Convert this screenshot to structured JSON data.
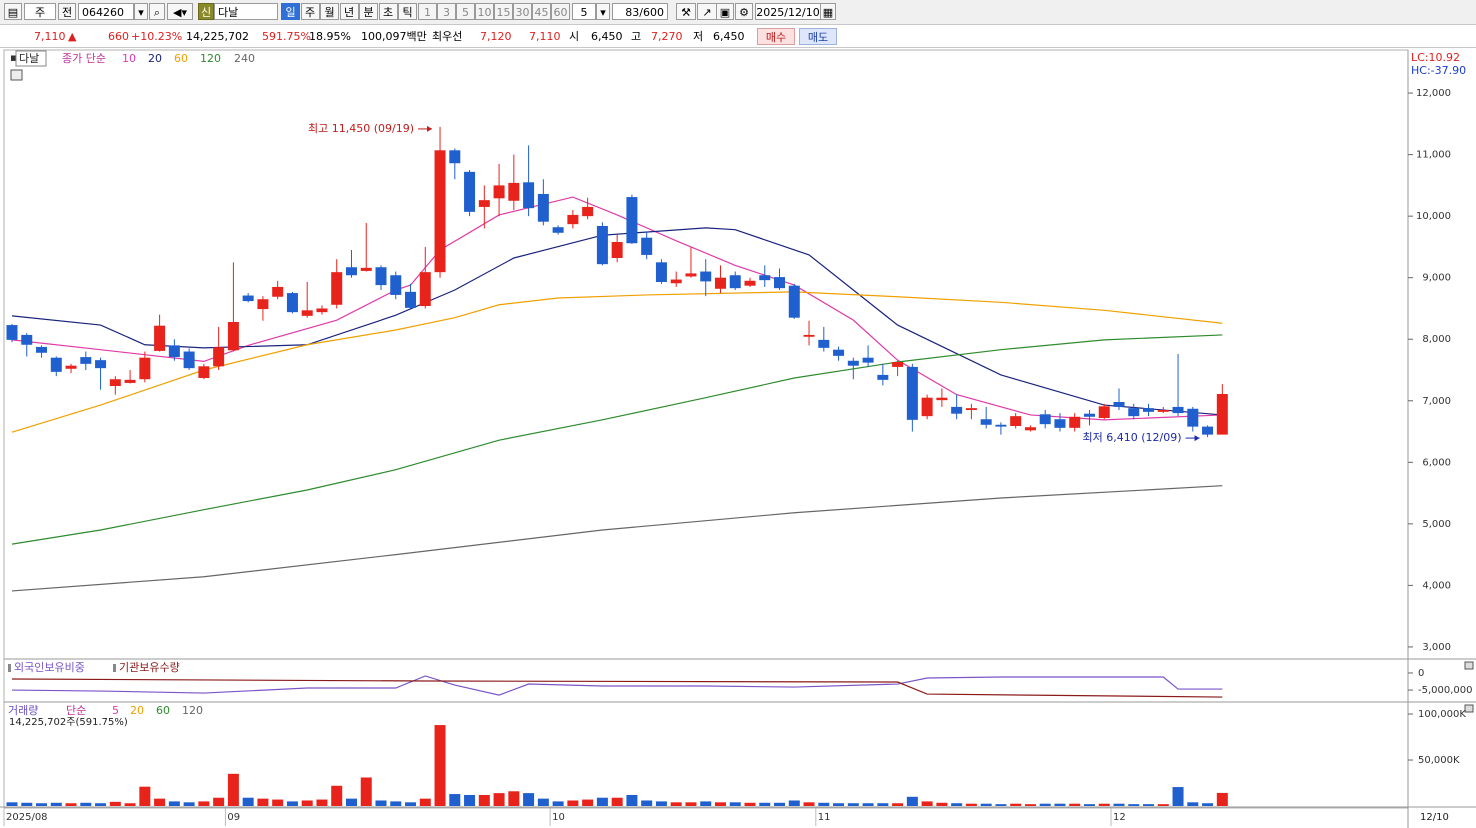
{
  "toolbar": {
    "market": "주",
    "prev": "전",
    "code": "064260",
    "new": "신",
    "name": "다날",
    "periods": [
      "일",
      "주",
      "월",
      "년",
      "분",
      "초",
      "틱"
    ],
    "minutes": [
      "1",
      "3",
      "5",
      "10",
      "15",
      "30",
      "45",
      "60"
    ],
    "count_select": "5",
    "count": "83/600",
    "date": "2025/12/10"
  },
  "quote_bar": {
    "price": "7,110",
    "arrow": "▲",
    "change": "660",
    "change_rate": "+10.23%",
    "volume": "14,225,702",
    "volume_rate": "591.75%",
    "turnover": "18.95%",
    "amount": "100,097백만",
    "best_label": "최우선",
    "ask": "7,120",
    "bid": "7,110",
    "open_label": "시",
    "open": "6,450",
    "high_label": "고",
    "high": "7,270",
    "low_label": "저",
    "low": "6,450",
    "buy": "매수",
    "sell": "매도"
  },
  "chart_data": [
    {
      "type": "candlestick",
      "name": "다날",
      "title": "종가 단순",
      "lc": "LC:10.92",
      "hc": "HC:-37.90",
      "end_date": "12/10",
      "categories": [
        "2025/08",
        null,
        null,
        null,
        null,
        null,
        null,
        null,
        null,
        null,
        null,
        null,
        null,
        null,
        null,
        "09",
        null,
        null,
        null,
        null,
        null,
        null,
        null,
        null,
        null,
        null,
        null,
        null,
        null,
        null,
        null,
        null,
        null,
        null,
        null,
        null,
        null,
        "10",
        null,
        null,
        null,
        null,
        null,
        null,
        null,
        null,
        null,
        null,
        null,
        null,
        null,
        null,
        null,
        null,
        null,
        "11",
        null,
        null,
        null,
        null,
        null,
        null,
        null,
        null,
        null,
        null,
        null,
        null,
        null,
        null,
        null,
        null,
        null,
        null,
        null,
        "12",
        null,
        null,
        null,
        null,
        null,
        null,
        null
      ],
      "open": [
        8230,
        8070,
        7875,
        7700,
        7520,
        7710,
        7660,
        7240,
        7290,
        7350,
        7810,
        7900,
        7800,
        7370,
        7560,
        7820,
        8710,
        8490,
        8690,
        8750,
        8380,
        8440,
        8560,
        9170,
        9110,
        9170,
        9040,
        8770,
        8540,
        9090,
        11070,
        10720,
        10150,
        10290,
        10250,
        10550,
        10360,
        9820,
        9870,
        10000,
        9840,
        9320,
        10310,
        9650,
        9250,
        8910,
        9020,
        9100,
        8820,
        9040,
        8870,
        9040,
        9010,
        8870,
        8040,
        7990,
        7830,
        7650,
        7700,
        7420,
        7550,
        7550,
        6750,
        7010,
        6900,
        6850,
        6700,
        6610,
        6590,
        6520,
        6780,
        6700,
        6560,
        6790,
        6720,
        6980,
        6880,
        6880,
        6820,
        6900,
        6870,
        6580,
        6450
      ],
      "high": [
        8250,
        8100,
        7900,
        7720,
        7600,
        7800,
        7700,
        7400,
        7500,
        7800,
        8400,
        8000,
        7850,
        7600,
        8200,
        9250,
        8750,
        8700,
        8950,
        8770,
        8930,
        8550,
        9300,
        9450,
        9890,
        9200,
        9100,
        8900,
        9500,
        11450,
        11100,
        10750,
        10500,
        10850,
        11000,
        11150,
        10600,
        9850,
        10100,
        10300,
        9900,
        9700,
        10350,
        9750,
        9300,
        9100,
        9500,
        9300,
        9200,
        9100,
        9000,
        9200,
        9150,
        8900,
        8300,
        8200,
        7880,
        7700,
        7900,
        7600,
        7650,
        7600,
        7100,
        7200,
        7100,
        6950,
        6900,
        6650,
        6800,
        6600,
        6850,
        6800,
        6800,
        6850,
        6950,
        7200,
        6950,
        6950,
        6900,
        7760,
        6900,
        6600,
        7270
      ],
      "low": [
        7950,
        7720,
        7700,
        7400,
        7450,
        7500,
        7180,
        7100,
        7280,
        7300,
        7800,
        7650,
        7500,
        7350,
        7500,
        7800,
        8600,
        8300,
        8650,
        8420,
        8350,
        8400,
        8500,
        9000,
        9100,
        8800,
        8650,
        8500,
        8500,
        9000,
        10600,
        10000,
        9800,
        10000,
        10100,
        10000,
        9850,
        9700,
        9800,
        9950,
        9200,
        9250,
        9550,
        9300,
        8900,
        8850,
        9000,
        8700,
        8750,
        8800,
        8850,
        8850,
        8800,
        8330,
        7900,
        7800,
        7650,
        7350,
        7550,
        7250,
        7400,
        6500,
        6700,
        6900,
        6700,
        6700,
        6550,
        6450,
        6550,
        6500,
        6550,
        6500,
        6500,
        6600,
        6700,
        6850,
        6700,
        6750,
        6800,
        6750,
        6500,
        6410,
        6450
      ],
      "close": [
        7990,
        7910,
        7780,
        7470,
        7570,
        7600,
        7530,
        7350,
        7340,
        7700,
        8220,
        7710,
        7530,
        7560,
        7870,
        8280,
        8620,
        8650,
        8850,
        8440,
        8470,
        8500,
        9090,
        9040,
        9160,
        8880,
        8720,
        8510,
        9090,
        11070,
        10860,
        10070,
        10260,
        10500,
        10540,
        10130,
        9910,
        9730,
        10020,
        10150,
        9220,
        9580,
        9560,
        9370,
        8930,
        8970,
        9070,
        8940,
        9000,
        8830,
        8950,
        8960,
        8830,
        8350,
        8070,
        7860,
        7730,
        7570,
        7620,
        7340,
        7630,
        6690,
        7050,
        7050,
        6790,
        6880,
        6610,
        6580,
        6750,
        6570,
        6620,
        6560,
        6740,
        6740,
        6910,
        6900,
        6750,
        6820,
        6850,
        6800,
        6580,
        6450,
        7110
      ],
      "up_color": "#e8231c",
      "down_color": "#1f5fce",
      "series": [
        {
          "name": "10",
          "color": "#e03aa8",
          "x": [
            0,
            6,
            13,
            16,
            22,
            26,
            27,
            29,
            33,
            38,
            41,
            45,
            49,
            53,
            57,
            60,
            64,
            69,
            74,
            82
          ],
          "values": [
            7990,
            7830,
            7640,
            7900,
            8310,
            8800,
            8880,
            9450,
            10020,
            10310,
            10020,
            9600,
            9200,
            8880,
            8310,
            7660,
            7100,
            6770,
            6690,
            6770
          ]
        },
        {
          "name": "20",
          "color": "#1a237e",
          "x": [
            0,
            6,
            9,
            13,
            20,
            26,
            30,
            34,
            40,
            47,
            49,
            54,
            60,
            67,
            74,
            82
          ],
          "values": [
            8380,
            8230,
            7910,
            7860,
            7910,
            8390,
            8800,
            9320,
            9690,
            9810,
            9780,
            9370,
            8230,
            7420,
            6930,
            6770
          ]
        },
        {
          "name": "60",
          "color": "#f0a000",
          "x": [
            0,
            6,
            13,
            20,
            26,
            30,
            33,
            37,
            43,
            53,
            60,
            67,
            74,
            82
          ],
          "values": [
            6490,
            6930,
            7500,
            7910,
            8150,
            8350,
            8560,
            8670,
            8720,
            8770,
            8690,
            8600,
            8470,
            8260
          ]
        },
        {
          "name": "120",
          "color": "#2e8b2e",
          "x": [
            0,
            6,
            13,
            20,
            26,
            33,
            40,
            47,
            53,
            60,
            67,
            74,
            82
          ],
          "values": [
            4670,
            4900,
            5230,
            5550,
            5880,
            6360,
            6690,
            7050,
            7370,
            7630,
            7830,
            7990,
            8070
          ]
        },
        {
          "name": "240",
          "color": "#666666",
          "x": [
            0,
            13,
            26,
            40,
            53,
            67,
            82
          ],
          "values": [
            3910,
            4140,
            4500,
            4900,
            5180,
            5420,
            5620
          ]
        }
      ],
      "annotations": [
        {
          "text": "최고 11,450 (09/19)",
          "index": 29,
          "value": 11450,
          "color": "#c41a1a"
        },
        {
          "text": "최저 6,410 (12/09)",
          "index": 81,
          "value": 6410,
          "color": "#1a2aa8"
        }
      ],
      "ylim": [
        2820,
        12700
      ],
      "yticks": [
        {
          "value": 3000,
          "label": "3,000"
        },
        {
          "value": 4000,
          "label": "4,000"
        },
        {
          "value": 5000,
          "label": "5,000"
        },
        {
          "value": 6000,
          "label": "6,000"
        },
        {
          "value": 7000,
          "label": "7,000"
        },
        {
          "value": 8000,
          "label": "8,000"
        },
        {
          "value": 9000,
          "label": "9,000"
        },
        {
          "value": 10000,
          "label": "10,000"
        },
        {
          "value": 11000,
          "label": "11,000"
        },
        {
          "value": 12000,
          "label": "12,000"
        }
      ]
    },
    {
      "type": "line",
      "series": [
        {
          "name": "외국인보유비중",
          "color": "#7a55c8",
          "x": [
            0,
            6,
            13,
            20,
            26,
            28,
            30,
            33,
            35,
            40,
            47,
            53,
            60,
            62,
            67,
            74,
            78,
            79,
            82
          ],
          "values": [
            -5000000,
            -5290000,
            -5880000,
            -4410000,
            -4410000,
            -880000,
            -3530000,
            -6470000,
            -3240000,
            -3820000,
            -3820000,
            -4120000,
            -3240000,
            -1470000,
            -1180000,
            -1180000,
            -1180000,
            -4710000,
            -4710000
          ]
        },
        {
          "name": "기관보유수량",
          "color": "#8b1a1a",
          "x": [
            0,
            28,
            60,
            62,
            82
          ],
          "values": [
            -1760000,
            -2350000,
            -2650000,
            -6180000,
            -7060000
          ]
        }
      ],
      "ylim": [
        -8500000,
        3800000
      ],
      "yticks": [
        0,
        {
          "value": -5000000,
          "label": "-5,000,000"
        }
      ]
    },
    {
      "type": "bar",
      "title": "거래량",
      "subtitle": "단순",
      "ma_labels": [
        "5",
        "20",
        "60",
        "120"
      ],
      "ma_colors": [
        "#e03aa8",
        "#f0a000",
        "#2e8b2e",
        "#666666"
      ],
      "note": "14,225,702주(591.75%)",
      "values": [
        4000,
        3500,
        3000,
        3500,
        3000,
        3500,
        3000,
        4500,
        3000,
        21000,
        8000,
        5000,
        4000,
        5000,
        9000,
        35000,
        9000,
        8000,
        7000,
        5000,
        6000,
        7000,
        22000,
        8000,
        31000,
        6000,
        5000,
        4000,
        8000,
        88000,
        13000,
        12000,
        12000,
        14000,
        16000,
        14000,
        8000,
        5000,
        6000,
        7000,
        9000,
        9000,
        12000,
        6000,
        5000,
        4000,
        4000,
        5000,
        4000,
        4000,
        3500,
        3500,
        3500,
        6000,
        4000,
        3500,
        3000,
        3000,
        3000,
        3000,
        3000,
        10000,
        5000,
        3500,
        3000,
        2500,
        2500,
        2000,
        2500,
        2000,
        2500,
        2500,
        2500,
        2000,
        2500,
        2500,
        2000,
        2000,
        2000,
        20600,
        4000,
        3000,
        14226
      ],
      "ylim": [
        0,
        112000
      ],
      "yticks": [
        {
          "value": 50000,
          "label": "50,000K"
        },
        {
          "value": 100000,
          "label": "100,000K"
        }
      ]
    }
  ]
}
